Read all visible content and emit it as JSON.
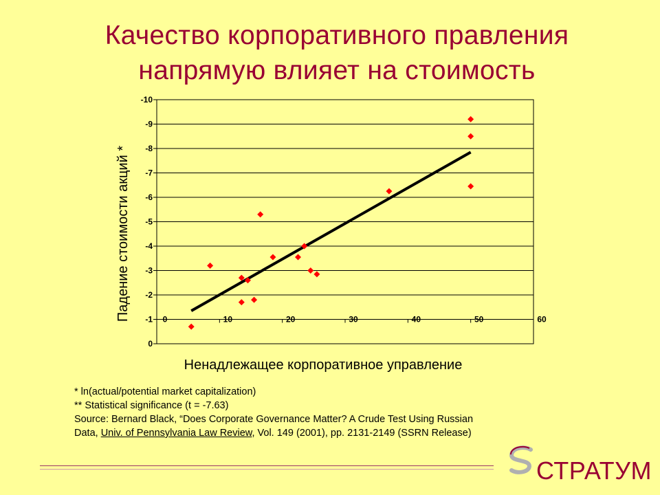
{
  "title_line1": "Качество корпоративного правления",
  "title_line2": "напрямую влияет на стоимость",
  "chart_data": {
    "type": "scatter",
    "xlabel": "Ненадлежащее корпоративное управление",
    "ylabel": "Падение стоимости акций *",
    "xlim": [
      0,
      60
    ],
    "ylim": [
      0,
      -10
    ],
    "x_ticks": [
      0,
      10,
      20,
      30,
      40,
      50,
      60
    ],
    "y_ticks": [
      0,
      -1,
      -2,
      -3,
      -4,
      -5,
      -6,
      -7,
      -8,
      -9,
      -10
    ],
    "grid": "horizontal",
    "points": [
      {
        "x": 5.5,
        "y": -0.7
      },
      {
        "x": 8.5,
        "y": -3.2
      },
      {
        "x": 13.5,
        "y": -2.7
      },
      {
        "x": 13.5,
        "y": -1.7
      },
      {
        "x": 14.5,
        "y": -2.6
      },
      {
        "x": 15.5,
        "y": -1.8
      },
      {
        "x": 16.5,
        "y": -5.3
      },
      {
        "x": 18.5,
        "y": -3.55
      },
      {
        "x": 22.5,
        "y": -3.55
      },
      {
        "x": 23.5,
        "y": -4.0
      },
      {
        "x": 24.5,
        "y": -3.0
      },
      {
        "x": 25.5,
        "y": -2.85
      },
      {
        "x": 37,
        "y": -6.25
      },
      {
        "x": 50,
        "y": -9.2
      },
      {
        "x": 50,
        "y": -8.5
      },
      {
        "x": 50,
        "y": -6.45
      }
    ],
    "trend_line": {
      "x": [
        5.5,
        50
      ],
      "y": [
        -1.35,
        -7.85
      ]
    },
    "point_color": "#FF0000",
    "line_color": "#000000"
  },
  "footnotes": {
    "line1": "* ln(actual/potential market capitalization)",
    "line2": "** Statistical significance (t = -7.63)",
    "line3": "Source: Bernard Black, “Does Corporate Governance Matter?  A Crude Test Using Russian",
    "line4_pre": "Data, ",
    "line4_link": "Univ. of Pennsylvania Law Review",
    "line4_post": ", Vol. 149 (2001), pp. 2131-2149 (SSRN Release)"
  },
  "logo": {
    "text": "СТРАТУМ",
    "mark": "S"
  },
  "colors": {
    "background": "#FFFF99",
    "title": "#990033",
    "accent": "#990033"
  }
}
